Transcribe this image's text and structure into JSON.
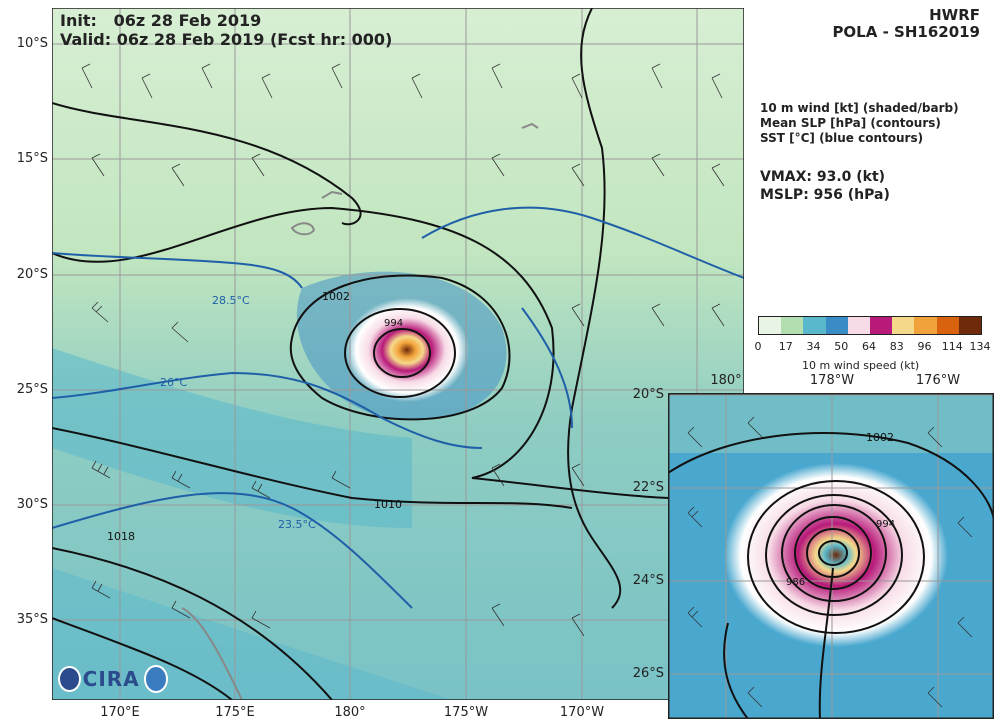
{
  "header": {
    "init_label": "Init:",
    "init_value": "06z 28 Feb 2019",
    "valid_line": "Valid: 06z 28 Feb 2019 (Fcst hr: 000)"
  },
  "model": {
    "name": "HWRF",
    "storm": "POLA - SH162019"
  },
  "legend": {
    "line1": "10 m wind [kt] (shaded/barb)",
    "line2": "Mean SLP [hPa] (contours)",
    "line3": "SST [°C] (blue contours)"
  },
  "stats": {
    "vmax": "VMAX:  93.0 (kt)",
    "mslp": "MSLP:  956 (hPa)"
  },
  "colorbar": {
    "ticks": [
      "0",
      "17",
      "34",
      "50",
      "64",
      "83",
      "96",
      "114",
      "134"
    ],
    "label": "10 m wind speed (kt)",
    "colors": [
      "#e8f5e4",
      "#b3dfb0",
      "#5ab8cc",
      "#3a8cc6",
      "#f7dbe6",
      "#b81a7a",
      "#f5d98a",
      "#f2a23a",
      "#d9620e",
      "#6e2a0a"
    ]
  },
  "main_map": {
    "lat_labels": [
      "10°S",
      "15°S",
      "20°S",
      "25°S",
      "30°S",
      "35°S"
    ],
    "lon_labels": [
      "170°E",
      "175°E",
      "180°",
      "175°W",
      "170°W"
    ],
    "slp_labels": [
      "994",
      "1002",
      "1010",
      "1018"
    ],
    "sst_labels": [
      "28.5°C",
      "26°C",
      "23.5°C"
    ]
  },
  "inset_map": {
    "lat_labels": [
      "20°S",
      "22°S",
      "24°S",
      "26°S"
    ],
    "lon_labels": [
      "180°",
      "178°W",
      "176°W"
    ],
    "slp_labels": [
      "1002",
      "994",
      "986"
    ]
  },
  "logo": {
    "text": "CIRA",
    "icon": "cira-logo-icon",
    "partner_icon": "noaa-logo-icon"
  }
}
